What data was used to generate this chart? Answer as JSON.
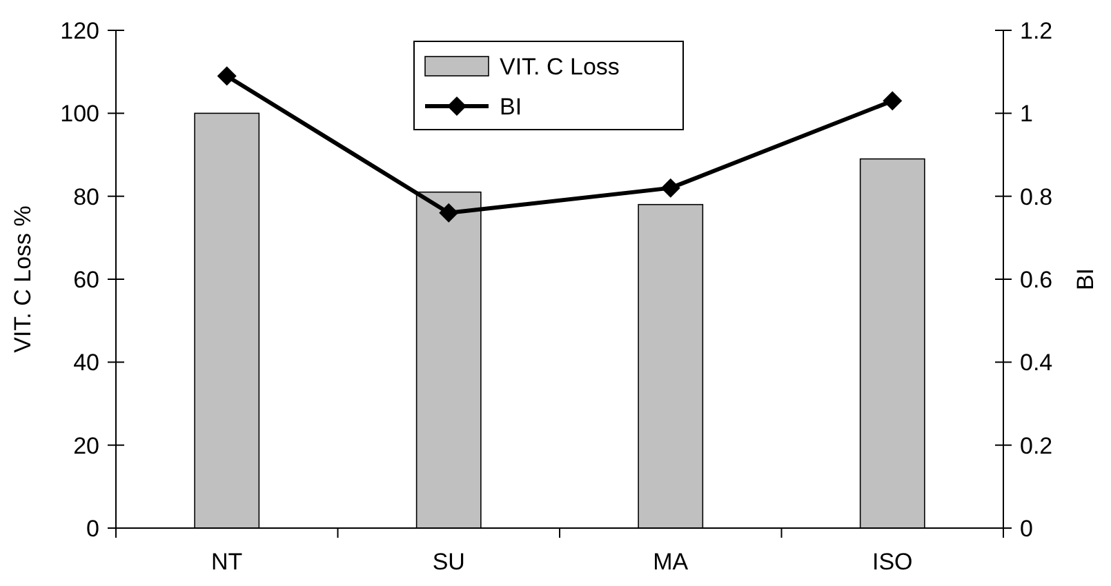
{
  "chart_data": {
    "type": "bar",
    "categories": [
      "NT",
      "SU",
      "MA",
      "ISO"
    ],
    "ylabel": "VIT. C Loss %",
    "y2label": "BI",
    "series": [
      {
        "name": "VIT. C Loss",
        "color": "#c0c0c0",
        "values": [
          100,
          81,
          78,
          89
        ]
      },
      {
        "name": "BI",
        "type": "line",
        "axis": "y2",
        "color": "#000000",
        "marker": "diamond",
        "values": [
          1.09,
          0.76,
          0.82,
          1.03
        ]
      }
    ],
    "ylim": [
      0,
      120
    ],
    "yticks": [
      0,
      20,
      40,
      60,
      80,
      100,
      120
    ],
    "y2lim": [
      0,
      1.2
    ],
    "y2ticks": [
      0,
      {
        "value": 0.2,
        "label": "0.2"
      },
      {
        "value": 0.4,
        "label": "0.4"
      },
      {
        "value": 0.6,
        "label": "0.6"
      },
      {
        "value": 0.8,
        "label": "0.8"
      },
      1,
      {
        "value": 1.2,
        "label": "1.2"
      }
    ],
    "legend": "top",
    "grid": false
  }
}
